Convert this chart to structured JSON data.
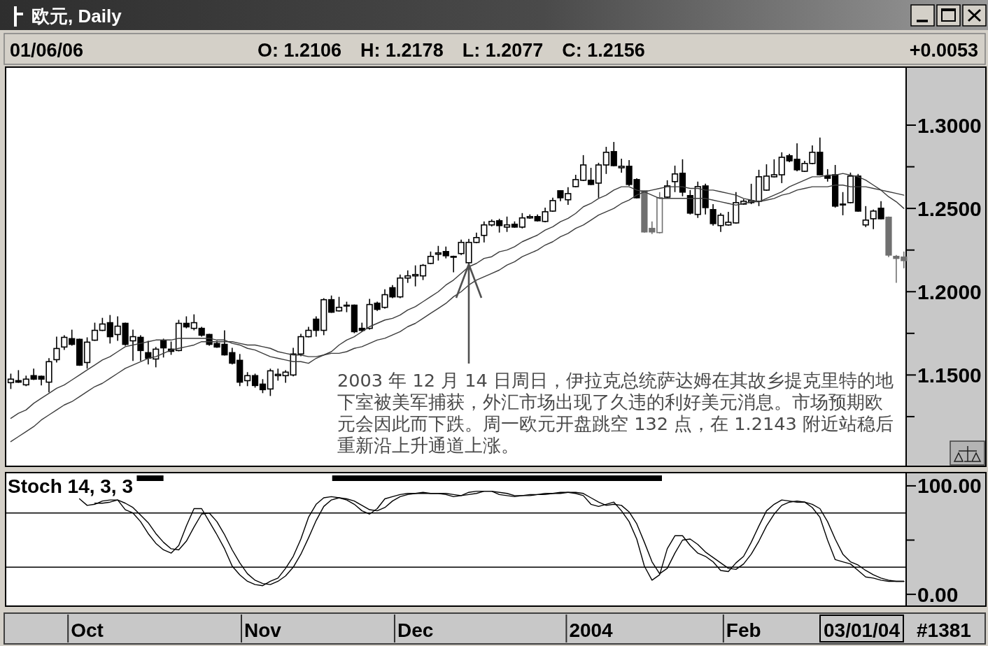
{
  "chart_data": [
    {
      "type": "candlestick",
      "title": "欧元, Daily",
      "categories": [
        null,
        null,
        null,
        null,
        null,
        null,
        null,
        null,
        null,
        null,
        null,
        null,
        null,
        null,
        null,
        null,
        null,
        null,
        null,
        null,
        null,
        null,
        null,
        null,
        null,
        null,
        null,
        null,
        null,
        null,
        null,
        null,
        null,
        null,
        null,
        null,
        null,
        null,
        null,
        null,
        null,
        null,
        null,
        null,
        null,
        null,
        null,
        null,
        null,
        null,
        null,
        null,
        null,
        null,
        null,
        null,
        null,
        null,
        null,
        null,
        null,
        null,
        null,
        null,
        null,
        null,
        null,
        null,
        null,
        null,
        null,
        null,
        null,
        null,
        null,
        null,
        null,
        null,
        null,
        null,
        null,
        null,
        null,
        null,
        null,
        null,
        null,
        null,
        null,
        null,
        null,
        null,
        null,
        null,
        null,
        null,
        null,
        null,
        null,
        null,
        null,
        null,
        null,
        null,
        null,
        null,
        null,
        null,
        null,
        null,
        null,
        null,
        null,
        null,
        null,
        null,
        null,
        null
      ],
      "ohlc": [
        [
          1.1454,
          1.1508,
          1.1416,
          1.1475
        ],
        [
          1.1466,
          1.1529,
          1.1453,
          1.1457
        ],
        [
          1.1441,
          1.1496,
          1.1433,
          1.1475
        ],
        [
          1.1496,
          1.1538,
          1.147,
          1.1475
        ],
        [
          1.1492,
          1.1496,
          1.1437,
          1.1475
        ],
        [
          1.1457,
          1.1601,
          1.1395,
          1.158
        ],
        [
          1.1592,
          1.173,
          1.1575,
          1.1659
        ],
        [
          1.1668,
          1.1739,
          1.1651,
          1.1726
        ],
        [
          1.1718,
          1.1772,
          1.1676,
          1.1684
        ],
        [
          1.1714,
          1.1718,
          1.1555,
          1.1559
        ],
        [
          1.1575,
          1.1726,
          1.1538,
          1.1697
        ],
        [
          1.1709,
          1.1814,
          1.1705,
          1.1768
        ],
        [
          1.1768,
          1.1843,
          1.1764,
          1.1806
        ],
        [
          1.1814,
          1.186,
          1.1689,
          1.173
        ],
        [
          1.1743,
          1.1852,
          1.1705,
          1.1793
        ],
        [
          1.181,
          1.1814,
          1.1676,
          1.1684
        ],
        [
          1.1705,
          1.1772,
          1.1584,
          1.173
        ],
        [
          1.1726,
          1.1739,
          1.1584,
          1.1647
        ],
        [
          1.1634,
          1.1705,
          1.1563,
          1.1601
        ],
        [
          1.1596,
          1.1668,
          1.1546,
          1.1655
        ],
        [
          1.1705,
          1.1718,
          1.1605,
          1.1663
        ],
        [
          1.1655,
          1.1701,
          1.1621,
          1.1642
        ],
        [
          1.1647,
          1.1831,
          1.1642,
          1.181
        ],
        [
          1.181,
          1.1852,
          1.178,
          1.1789
        ],
        [
          1.178,
          1.1864,
          1.1768,
          1.1814
        ],
        [
          1.178,
          1.1789,
          1.173,
          1.1739
        ],
        [
          1.1743,
          1.1747,
          1.1676,
          1.1684
        ],
        [
          1.1689,
          1.1705,
          1.1663,
          1.1668
        ],
        [
          1.1684,
          1.1768,
          1.1617,
          1.1621
        ],
        [
          1.1634,
          1.1663,
          1.1563,
          1.1571
        ],
        [
          1.1588,
          1.1626,
          1.1433,
          1.1457
        ],
        [
          1.1466,
          1.1517,
          1.1433,
          1.1496
        ],
        [
          1.1496,
          1.1508,
          1.1424,
          1.1437
        ],
        [
          1.1445,
          1.1475,
          1.1391,
          1.1412
        ],
        [
          1.1416,
          1.1538,
          1.1374,
          1.1525
        ],
        [
          1.1496,
          1.1538,
          1.1466,
          1.1504
        ],
        [
          1.1496,
          1.1529,
          1.1453,
          1.1517
        ],
        [
          1.15,
          1.1663,
          1.1492,
          1.1626
        ],
        [
          1.1626,
          1.1747,
          1.1613,
          1.173
        ],
        [
          1.173,
          1.1789,
          1.1726,
          1.1768
        ],
        [
          1.1835,
          1.1852,
          1.173,
          1.1768
        ],
        [
          1.1768,
          1.1961,
          1.1739,
          1.1952
        ],
        [
          1.1952,
          1.1977,
          1.1873,
          1.1877
        ],
        [
          1.1885,
          1.1969,
          1.1881,
          1.1906
        ],
        [
          1.1915,
          1.194,
          1.1877,
          1.1919
        ],
        [
          1.1919,
          1.1923,
          1.1751,
          1.176
        ],
        [
          1.178,
          1.1814,
          1.176,
          1.1768
        ],
        [
          1.178,
          1.1957,
          1.1772,
          1.1923
        ],
        [
          1.1931,
          1.194,
          1.1885,
          1.1894
        ],
        [
          1.1906,
          1.2015,
          1.1898,
          1.1982
        ],
        [
          1.2024,
          1.204,
          1.1961,
          1.1969
        ],
        [
          1.1969,
          1.2103,
          1.1961,
          1.2082
        ],
        [
          1.2082,
          1.2128,
          1.2053,
          1.2095
        ],
        [
          1.2095,
          1.2158,
          1.2032,
          1.2103
        ],
        [
          1.2095,
          1.2166,
          1.207,
          1.2158
        ],
        [
          1.217,
          1.2241,
          1.2166,
          1.2212
        ],
        [
          1.2225,
          1.2275,
          1.2187,
          1.2233
        ],
        [
          1.2241,
          1.2271,
          1.22,
          1.2216
        ],
        [
          1.2212,
          1.2216,
          1.2116,
          1.2208
        ],
        [
          1.2229,
          1.2313,
          1.222,
          1.2296
        ],
        [
          1.2174,
          1.2317,
          1.2166,
          1.2296
        ],
        [
          1.2296,
          1.2355,
          1.2292,
          1.2325
        ],
        [
          1.2338,
          1.2422,
          1.2296,
          1.2401
        ],
        [
          1.2401,
          1.2434,
          1.2392,
          1.2422
        ],
        [
          1.2426,
          1.2438,
          1.2355,
          1.2397
        ],
        [
          1.2388,
          1.2451,
          1.2359,
          1.2401
        ],
        [
          1.2405,
          1.2422,
          1.2384,
          1.2388
        ],
        [
          1.2388,
          1.2472,
          1.238,
          1.2443
        ],
        [
          1.2443,
          1.2464,
          1.2438,
          1.2451
        ],
        [
          1.2451,
          1.2464,
          1.2422,
          1.2426
        ],
        [
          1.2422,
          1.2505,
          1.2417,
          1.248
        ],
        [
          1.2484,
          1.2564,
          1.248,
          1.2547
        ],
        [
          1.2606,
          1.261,
          1.2543,
          1.2564
        ],
        [
          1.2552,
          1.2627,
          1.2522,
          1.2589
        ],
        [
          1.2631,
          1.2702,
          1.2627,
          1.2673
        ],
        [
          1.2669,
          1.282,
          1.2665,
          1.2761
        ],
        [
          1.2669,
          1.2744,
          1.264,
          1.2644
        ],
        [
          1.2652,
          1.2774,
          1.2564,
          1.2761
        ],
        [
          1.2761,
          1.287,
          1.2707,
          1.2837
        ],
        [
          1.2841,
          1.2899,
          1.2753,
          1.2757
        ],
        [
          1.2744,
          1.2799,
          1.2715,
          1.2753
        ],
        [
          1.2753,
          1.279,
          1.2635,
          1.2644
        ],
        [
          1.2673,
          1.2681,
          1.256,
          1.2564
        ],
        [
          1.2606,
          1.261,
          1.2355,
          1.2359
        ],
        [
          1.238,
          1.2422,
          1.2346,
          1.2359
        ],
        [
          1.2355,
          1.2598,
          1.235,
          1.2564
        ],
        [
          1.2568,
          1.2669,
          1.2564,
          1.2635
        ],
        [
          1.2661,
          1.2757,
          1.2598,
          1.2707
        ],
        [
          1.2711,
          1.2795,
          1.2573,
          1.2598
        ],
        [
          1.2577,
          1.261,
          1.2464,
          1.2472
        ],
        [
          1.2464,
          1.2661,
          1.2443,
          1.2631
        ],
        [
          1.2635,
          1.2648,
          1.2464,
          1.2505
        ],
        [
          1.2493,
          1.2526,
          1.2397,
          1.2409
        ],
        [
          1.2397,
          1.2472,
          1.2359,
          1.2459
        ],
        [
          1.2401,
          1.248,
          1.2397,
          1.2417
        ],
        [
          1.2413,
          1.2598,
          1.2409,
          1.2535
        ],
        [
          1.2526,
          1.2556,
          1.2522,
          1.2543
        ],
        [
          1.2535,
          1.2648,
          1.2526,
          1.2547
        ],
        [
          1.2543,
          1.2732,
          1.2514,
          1.269
        ],
        [
          1.261,
          1.2765,
          1.2606,
          1.2694
        ],
        [
          1.269,
          1.2795,
          1.2686,
          1.2702
        ],
        [
          1.2702,
          1.2837,
          1.2652,
          1.2807
        ],
        [
          1.2816,
          1.2828,
          1.2778,
          1.2786
        ],
        [
          1.2795,
          1.2891,
          1.2723,
          1.2732
        ],
        [
          1.2723,
          1.2786,
          1.2719,
          1.277
        ],
        [
          1.277,
          1.2878,
          1.2765,
          1.2837
        ],
        [
          1.2837,
          1.2925,
          1.2698,
          1.2702
        ],
        [
          1.2694,
          1.2736,
          1.2661,
          1.2681
        ],
        [
          1.2702,
          1.2761,
          1.2505,
          1.2514
        ],
        [
          1.2522,
          1.2598,
          1.2459,
          1.2526
        ],
        [
          1.2535,
          1.2715,
          1.2531,
          1.2694
        ],
        [
          1.2694,
          1.2707,
          1.248,
          1.2484
        ],
        [
          1.2401,
          1.2514,
          1.2388,
          1.243
        ],
        [
          1.2438,
          1.2493,
          1.2376,
          1.2484
        ],
        [
          1.2501,
          1.2543,
          1.2434,
          1.2438
        ],
        [
          1.2447,
          1.2451,
          1.2208,
          1.222
        ],
        [
          1.2212,
          1.222,
          1.2053,
          1.22
        ],
        [
          1.2208,
          1.2241,
          1.2141,
          1.2187
        ]
      ],
      "colors": [
        "#000000",
        "#000000",
        "#000000",
        "#000000",
        "#000000",
        "#000000",
        "#000000",
        "#000000",
        "#000000",
        "#000000",
        "#000000",
        "#000000",
        "#000000",
        "#000000",
        "#000000",
        "#000000",
        "#000000",
        "#000000",
        "#000000",
        "#000000",
        "#000000",
        "#000000",
        "#000000",
        "#000000",
        "#000000",
        "#000000",
        "#000000",
        "#000000",
        "#000000",
        "#000000",
        "#000000",
        "#000000",
        "#000000",
        "#000000",
        "#000000",
        "#000000",
        "#000000",
        "#000000",
        "#000000",
        "#000000",
        "#000000",
        "#000000",
        "#000000",
        "#000000",
        "#000000",
        "#000000",
        "#000000",
        "#000000",
        "#000000",
        "#000000",
        "#000000",
        "#000000",
        "#000000",
        "#000000",
        "#000000",
        "#000000",
        "#000000",
        "#000000",
        "#000000",
        "#000000",
        "#000000",
        "#000000",
        "#000000",
        "#000000",
        "#000000",
        "#000000",
        "#000000",
        "#000000",
        "#000000",
        "#000000",
        "#000000",
        "#000000",
        "#000000",
        "#000000",
        "#000000",
        "#000000",
        "#000000",
        "#000000",
        "#000000",
        "#000000",
        "#000000",
        "#000000",
        "#000000",
        "#707070",
        "#707070",
        "#707070",
        "#000000",
        "#000000",
        "#000000",
        "#000000",
        "#000000",
        "#000000",
        "#000000",
        "#000000",
        "#000000",
        "#000000",
        "#000000",
        "#000000",
        "#000000",
        "#000000",
        "#000000",
        "#000000",
        "#000000",
        "#000000",
        "#000000",
        "#000000",
        "#000000",
        "#000000",
        "#000000",
        "#000000",
        "#000000",
        "#000000",
        "#000000",
        "#000000",
        "#000000",
        "#707070",
        "#707070",
        "#707070"
      ],
      "series": [
        {
          "type": "line",
          "color": "#3c3c3c",
          "values": [
            1.124,
            1.127,
            1.129,
            1.133,
            1.136,
            1.139,
            1.142,
            1.144,
            1.147,
            1.15,
            1.153,
            1.156,
            1.159,
            1.161,
            1.164,
            1.167,
            1.168,
            1.169,
            1.17,
            1.171,
            1.171,
            1.171,
            1.172,
            1.172,
            1.172,
            1.172,
            1.172,
            1.171,
            1.171,
            1.169,
            1.168,
            1.166,
            1.165,
            1.163,
            1.161,
            1.16,
            1.159,
            1.158,
            1.158,
            1.157,
            1.16,
            1.162,
            1.164,
            1.168,
            1.171,
            1.173,
            1.176,
            1.179,
            1.181,
            1.183,
            1.184,
            1.186,
            1.189,
            1.191,
            1.194,
            1.197,
            1.2,
            1.204,
            1.207,
            1.211,
            1.215,
            1.217,
            1.22,
            1.221,
            1.224,
            1.225,
            1.227,
            1.23,
            1.232,
            1.234,
            1.237,
            1.239,
            1.242,
            1.244,
            1.247,
            1.251,
            1.253,
            1.256,
            1.258,
            1.261,
            1.263,
            1.263,
            1.261,
            1.26,
            1.258,
            1.256,
            1.256,
            1.256,
            1.256,
            1.256,
            1.256,
            1.256,
            1.255,
            1.254,
            1.253,
            1.252,
            1.253,
            1.254,
            1.254,
            1.256,
            1.258,
            1.26,
            1.263,
            1.265,
            1.267,
            1.269,
            1.269,
            1.27,
            1.27,
            1.271,
            1.27,
            1.269,
            1.267,
            1.264,
            1.261,
            1.257,
            1.254,
            1.25
          ]
        },
        {
          "type": "line",
          "color": "#3c3c3c",
          "values": [
            1.11,
            1.113,
            1.116,
            1.119,
            1.123,
            1.126,
            1.129,
            1.132,
            1.134,
            1.137,
            1.14,
            1.143,
            1.145,
            1.148,
            1.151,
            1.154,
            1.156,
            1.158,
            1.16,
            1.161,
            1.163,
            1.165,
            1.166,
            1.167,
            1.168,
            1.17,
            1.17,
            1.17,
            1.17,
            1.17,
            1.169,
            1.168,
            1.168,
            1.167,
            1.166,
            1.164,
            1.163,
            1.162,
            1.162,
            1.161,
            1.161,
            1.162,
            1.163,
            1.163,
            1.164,
            1.166,
            1.167,
            1.169,
            1.171,
            1.172,
            1.174,
            1.176,
            1.179,
            1.181,
            1.184,
            1.187,
            1.19,
            1.193,
            1.197,
            1.2,
            1.204,
            1.207,
            1.209,
            1.211,
            1.213,
            1.216,
            1.218,
            1.221,
            1.223,
            1.225,
            1.228,
            1.23,
            1.233,
            1.235,
            1.238,
            1.24,
            1.243,
            1.246,
            1.248,
            1.25,
            1.253,
            1.255,
            1.258,
            1.26,
            1.261,
            1.262,
            1.263,
            1.263,
            1.263,
            1.262,
            1.262,
            1.261,
            1.261,
            1.26,
            1.259,
            1.258,
            1.256,
            1.255,
            1.254,
            1.255,
            1.256,
            1.258,
            1.259,
            1.261,
            1.262,
            1.263,
            1.263,
            1.263,
            1.264,
            1.264,
            1.263,
            1.263,
            1.263,
            1.262,
            1.261,
            1.26,
            1.259,
            1.258
          ]
        }
      ],
      "ylim": [
        1.096,
        1.334
      ],
      "yticks": [
        {
          "value": 1.125,
          "label": null
        },
        {
          "value": 1.15,
          "label": "1.1500"
        },
        {
          "value": 1.175,
          "label": null
        },
        {
          "value": 1.2,
          "label": "1.2000"
        },
        {
          "value": 1.225,
          "label": null
        },
        {
          "value": 1.25,
          "label": "1.2500"
        },
        {
          "value": 1.275,
          "label": null
        },
        {
          "value": 1.3,
          "label": "1.3000"
        }
      ],
      "annotations": [
        "01/06/06",
        "O: 1.2106",
        "H: 1.2178",
        "L: 1.2077",
        "C: 1.2156",
        "+0.0053",
        "2003 年 12 月 14 日周日，伊拉克总统萨达姆在其故乡提克里特的地下室被美军捕获，外汇市场出现了久违的利好美元消息。市场预期欧元会因此而下跌。周一欧元开盘跳空 132 点，在 1.2143 附近站稳后重新沿上升通道上涨。"
      ]
    },
    {
      "type": "line",
      "title": "Stoch 14, 3, 3",
      "categories": [
        null,
        null,
        null,
        null,
        null,
        null,
        null,
        null,
        null,
        null,
        "Oct",
        null,
        null,
        null,
        null,
        null,
        null,
        null,
        null,
        null,
        null,
        null,
        null,
        null,
        null,
        null,
        null,
        null,
        null,
        null,
        null,
        null,
        null,
        "Nov",
        null,
        null,
        null,
        null,
        null,
        null,
        null,
        null,
        null,
        null,
        null,
        null,
        null,
        null,
        null,
        null,
        null,
        null,
        null,
        "Dec",
        null,
        null,
        null,
        null,
        null,
        null,
        null,
        null,
        null,
        null,
        null,
        null,
        null,
        null,
        null,
        null,
        null,
        null,
        null,
        null,
        null,
        null,
        "2004",
        null,
        null,
        null,
        null,
        null,
        null,
        null,
        null,
        null,
        null,
        null,
        null,
        null,
        null,
        null,
        null,
        null,
        null,
        null,
        "Feb",
        null,
        null,
        null,
        null,
        null,
        null,
        null,
        null,
        null,
        null,
        null,
        null,
        null,
        null,
        null,
        null,
        null,
        null,
        null,
        null,
        null
      ],
      "series": [
        {
          "color": "#000000",
          "values": [
            null,
            null,
            null,
            null,
            null,
            null,
            null,
            null,
            null,
            88,
            82,
            83,
            86,
            87,
            87,
            78,
            75,
            67,
            56,
            47,
            41,
            38,
            45,
            63,
            79,
            79,
            67,
            55,
            42,
            26,
            18,
            12,
            9,
            8,
            12,
            15,
            24,
            35,
            51,
            71,
            83,
            89,
            90,
            89,
            87,
            83,
            77,
            74,
            79,
            88,
            90,
            92,
            93,
            93,
            94,
            93,
            93,
            92,
            90,
            91,
            94,
            95,
            95,
            95,
            92,
            91,
            90,
            91,
            92,
            92,
            93,
            93,
            94,
            94,
            93,
            91,
            83,
            81,
            83,
            85,
            77,
            67,
            51,
            26,
            13,
            18,
            42,
            54,
            54,
            45,
            38,
            35,
            30,
            22,
            21,
            29,
            35,
            48,
            63,
            77,
            83,
            87,
            86,
            85,
            85,
            80,
            71,
            50,
            32,
            30,
            28,
            22,
            16,
            15,
            13,
            12,
            12,
            12
          ]
        },
        {
          "color": "#000000",
          "values": [
            null,
            null,
            null,
            null,
            null,
            null,
            null,
            null,
            null,
            null,
            null,
            84,
            84,
            85,
            87,
            84,
            80,
            73,
            66,
            56,
            48,
            42,
            41,
            49,
            62,
            74,
            75,
            67,
            55,
            41,
            29,
            19,
            13,
            10,
            9,
            12,
            17,
            25,
            37,
            52,
            68,
            81,
            87,
            89,
            88,
            86,
            82,
            78,
            77,
            80,
            86,
            90,
            92,
            93,
            93,
            93,
            93,
            93,
            92,
            91,
            92,
            93,
            95,
            95,
            94,
            93,
            91,
            91,
            91,
            92,
            92,
            93,
            93,
            94,
            94,
            93,
            89,
            85,
            82,
            83,
            82,
            76,
            65,
            48,
            30,
            19,
            24,
            38,
            50,
            51,
            46,
            39,
            34,
            29,
            24,
            23,
            28,
            37,
            49,
            63,
            74,
            82,
            85,
            86,
            85,
            83,
            79,
            67,
            51,
            37,
            30,
            27,
            22,
            18,
            15,
            13,
            12,
            12
          ]
        }
      ],
      "ylim": [
        -9.6,
        110.9
      ],
      "yticks": [
        {
          "value": 0,
          "label": "0.00"
        },
        {
          "value": 50,
          "label": null
        },
        {
          "value": 100,
          "label": "100.00"
        }
      ],
      "ref_lines": [
        {
          "axis": "y",
          "value": 25
        },
        {
          "axis": "y",
          "value": 75
        }
      ],
      "annotations": [
        "03/01/04",
        "#1381"
      ]
    }
  ]
}
